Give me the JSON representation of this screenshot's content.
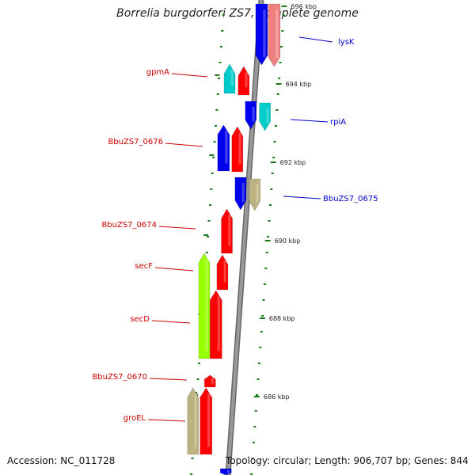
{
  "title": "Borrelia burgdorferi ZS7, complete genome",
  "footer": {
    "accession": "Accession: NC_011728",
    "summary": "Topology: circular; Length: 906,707 bp; Genes: 844"
  },
  "colors": {
    "backbone": "#999999",
    "tick": "#1a7a1a",
    "label_red": "#cc0000",
    "label_blue": "#0000cc",
    "red": "#ff0000",
    "blue": "#0000ee",
    "cyan": "#00cccc",
    "pink": "#f08080",
    "khaki": "#bdb382",
    "lime": "#99ff00"
  },
  "scale_labels": [
    "696 kbp",
    "694 kbp",
    "692 kbp",
    "690 kbp",
    "688 kbp",
    "686 kbp"
  ],
  "genes": [
    {
      "name": "lysK",
      "strand": "reverse",
      "color": "pink"
    },
    {
      "name": "lysK-part",
      "strand": "reverse",
      "color": "blue"
    },
    {
      "name": "gpmA",
      "strand": "forward",
      "color": "red"
    },
    {
      "name": "gpmA-neighbor",
      "strand": "forward",
      "color": "cyan"
    },
    {
      "name": "rpiA",
      "strand": "reverse",
      "color": "cyan"
    },
    {
      "name": "rpiA-neighbor",
      "strand": "reverse",
      "color": "blue"
    },
    {
      "name": "BbuZS7_0676",
      "strand": "forward",
      "color": "red"
    },
    {
      "name": "BbuZS7_0676-neighbor",
      "strand": "forward",
      "color": "blue"
    },
    {
      "name": "BbuZS7_0675",
      "strand": "reverse",
      "color": "khaki"
    },
    {
      "name": "BbuZS7_0675-neighbor",
      "strand": "reverse",
      "color": "blue"
    },
    {
      "name": "BbuZS7_0674",
      "strand": "forward",
      "color": "red"
    },
    {
      "name": "secF",
      "strand": "forward",
      "color": "red"
    },
    {
      "name": "secD",
      "strand": "forward",
      "color": "red"
    },
    {
      "name": "secDF-lime",
      "strand": "forward",
      "color": "lime"
    },
    {
      "name": "BbuZS7_0670",
      "strand": "forward",
      "color": "red"
    },
    {
      "name": "groEL",
      "strand": "forward",
      "color": "red"
    },
    {
      "name": "groEL-neighbor",
      "strand": "forward",
      "color": "khaki"
    },
    {
      "name": "bottom-fragment",
      "strand": "reverse",
      "color": "blue"
    }
  ],
  "labels": [
    {
      "text": "lysK",
      "side": "right"
    },
    {
      "text": "gpmA",
      "side": "left"
    },
    {
      "text": "rpiA",
      "side": "right"
    },
    {
      "text": "BbuZS7_0676",
      "side": "left"
    },
    {
      "text": "BbuZS7_0675",
      "side": "right"
    },
    {
      "text": "BbuZS7_0674",
      "side": "left"
    },
    {
      "text": "secF",
      "side": "left"
    },
    {
      "text": "secD",
      "side": "left"
    },
    {
      "text": "BbuZS7_0670",
      "side": "left"
    },
    {
      "text": "groEL",
      "side": "left"
    }
  ]
}
